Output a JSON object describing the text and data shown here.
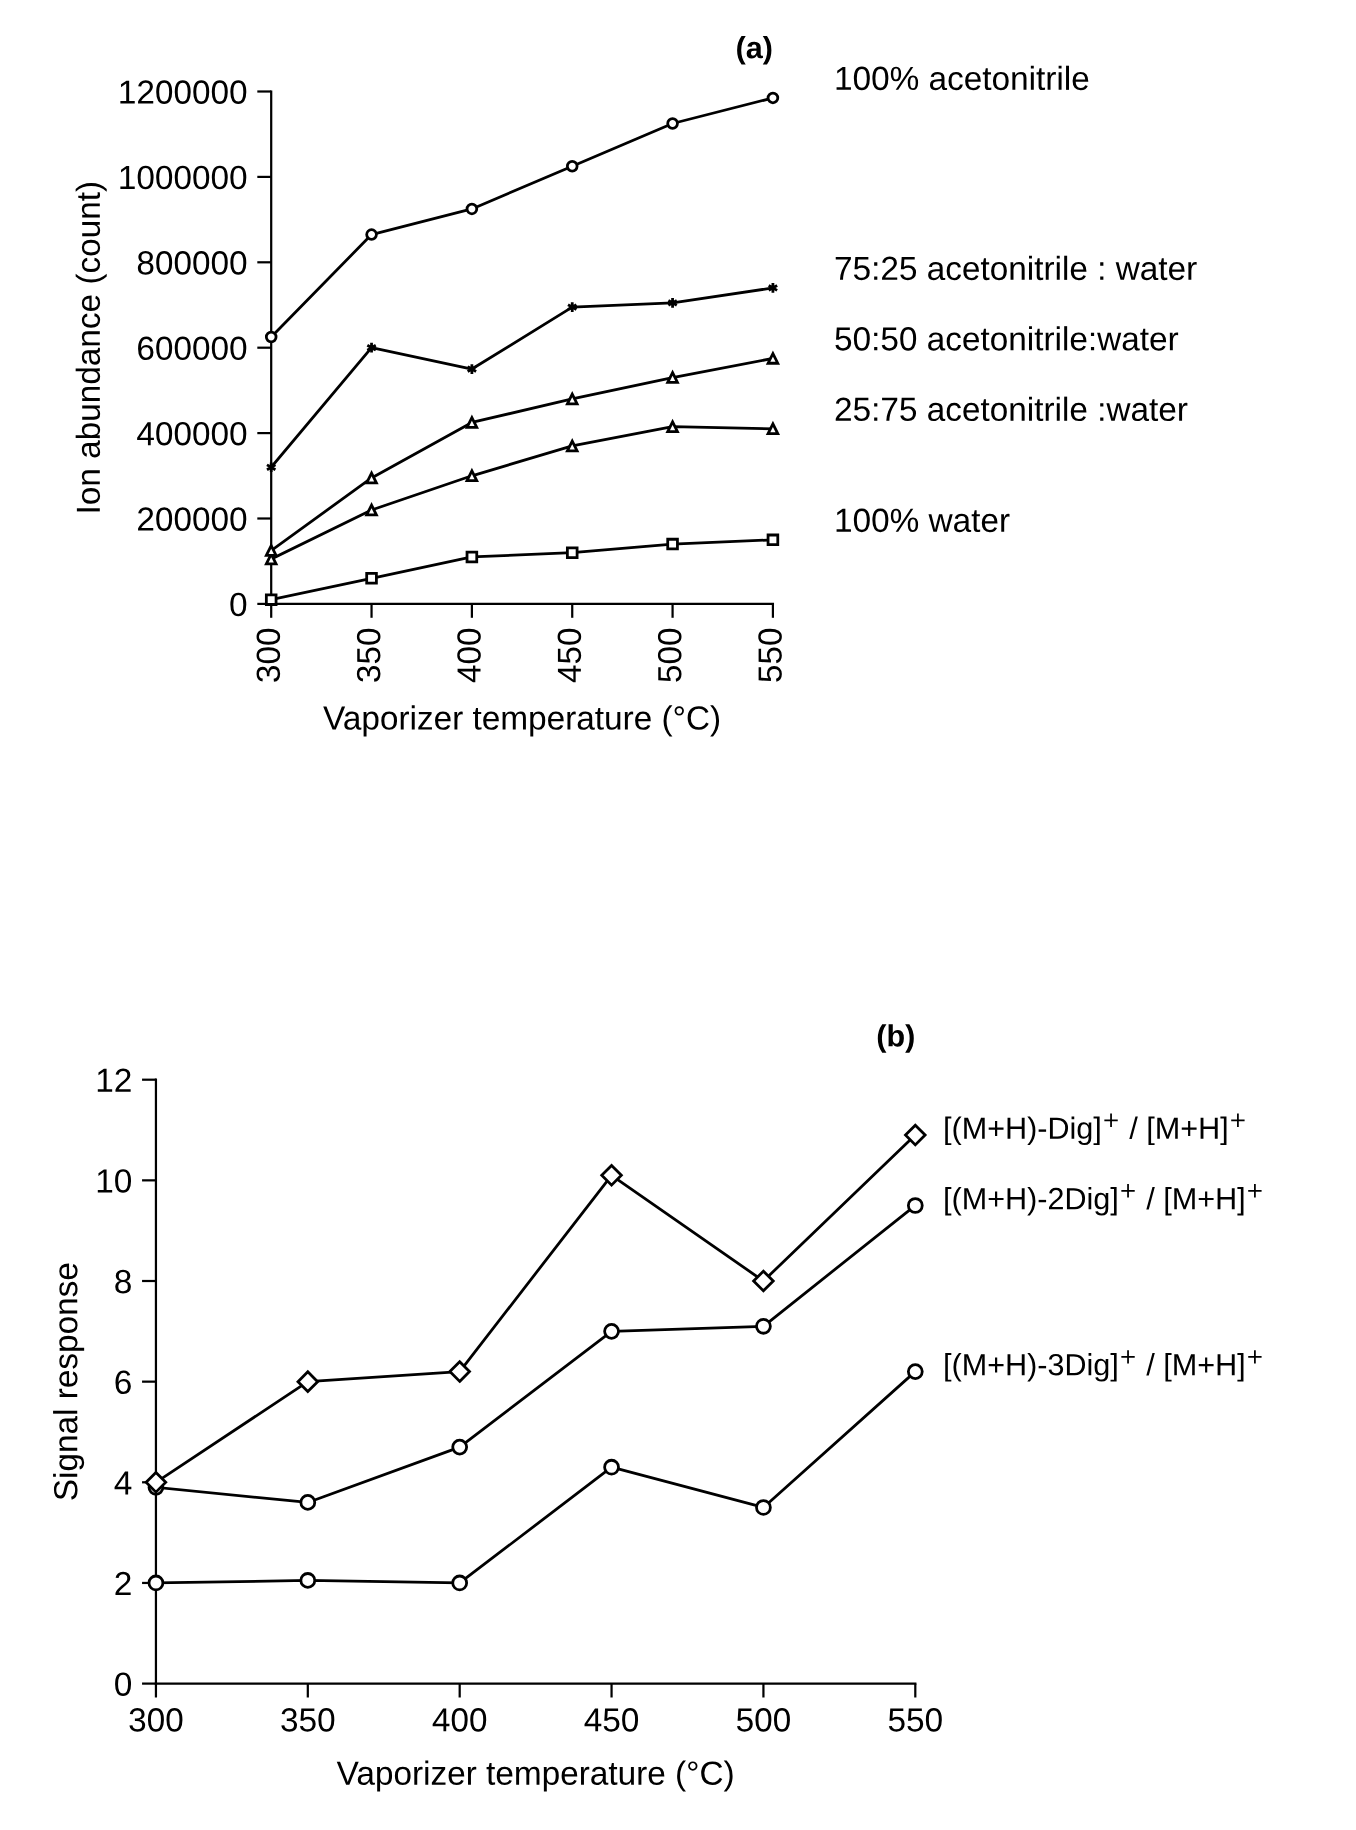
{
  "chart_data": [
    {
      "type": "line",
      "title": "(a)",
      "xlabel": "Vaporizer temperature (°C)",
      "ylabel": "Ion abundance (count)",
      "x": [
        300,
        350,
        400,
        450,
        500,
        550
      ],
      "xlim": [
        300,
        550
      ],
      "xticks": [
        300,
        350,
        400,
        450,
        500,
        550
      ],
      "ylim": [
        0,
        1200000
      ],
      "yticks": [
        0,
        200000,
        400000,
        600000,
        800000,
        1000000,
        1200000
      ],
      "grid": false,
      "legend": false,
      "line_style": "solid",
      "series": [
        {
          "name": "100% acetonitrile",
          "color": "#000000",
          "marker": "circle",
          "values": [
            625000,
            865000,
            925000,
            1025000,
            1125000,
            1185000
          ]
        },
        {
          "name": "75:25 acetonitrile : water",
          "color": "#000000",
          "marker": "cross",
          "values": [
            320000,
            600000,
            550000,
            695000,
            705000,
            740000
          ]
        },
        {
          "name": "50:50 acetonitrile:water",
          "color": "#000000",
          "marker": "triangle",
          "values": [
            125000,
            295000,
            425000,
            480000,
            530000,
            575000
          ]
        },
        {
          "name": "25:75 acetonitrile :water",
          "color": "#000000",
          "marker": "triangle",
          "values": [
            105000,
            220000,
            300000,
            370000,
            415000,
            410000
          ]
        },
        {
          "name": "100% water",
          "color": "#000000",
          "marker": "square",
          "values": [
            10000,
            60000,
            110000,
            120000,
            140000,
            150000
          ]
        }
      ]
    },
    {
      "type": "line",
      "title": "(b)",
      "xlabel": "Vaporizer temperature (°C)",
      "ylabel": "Signal response",
      "x": [
        300,
        350,
        400,
        450,
        500,
        550
      ],
      "xlim": [
        300,
        550
      ],
      "xticks": [
        300,
        350,
        400,
        450,
        500,
        550
      ],
      "ylim": [
        0,
        12
      ],
      "yticks": [
        0,
        2,
        4,
        6,
        8,
        10,
        12
      ],
      "grid": false,
      "legend": false,
      "line_style": "solid",
      "series": [
        {
          "name": "[(M+H)-Dig]$^{+}$ / [M+H]$^{+}$",
          "color": "#000000",
          "marker": "diamond",
          "values": [
            4.0,
            6.0,
            6.2,
            10.1,
            8.0,
            10.9
          ]
        },
        {
          "name": "[(M+H)-2Dig]$^{+}$ / [M+H]$^{+}$",
          "color": "#000000",
          "marker": "circle",
          "values": [
            3.9,
            3.6,
            4.7,
            7.0,
            7.1,
            9.5
          ]
        },
        {
          "name": "[(M+H)-3Dig]$^{+}$ / [M+H]$^{+}$",
          "color": "#000000",
          "marker": "circle",
          "values": [
            2.0,
            2.05,
            2.0,
            4.3,
            3.5,
            6.2
          ]
        }
      ]
    }
  ]
}
